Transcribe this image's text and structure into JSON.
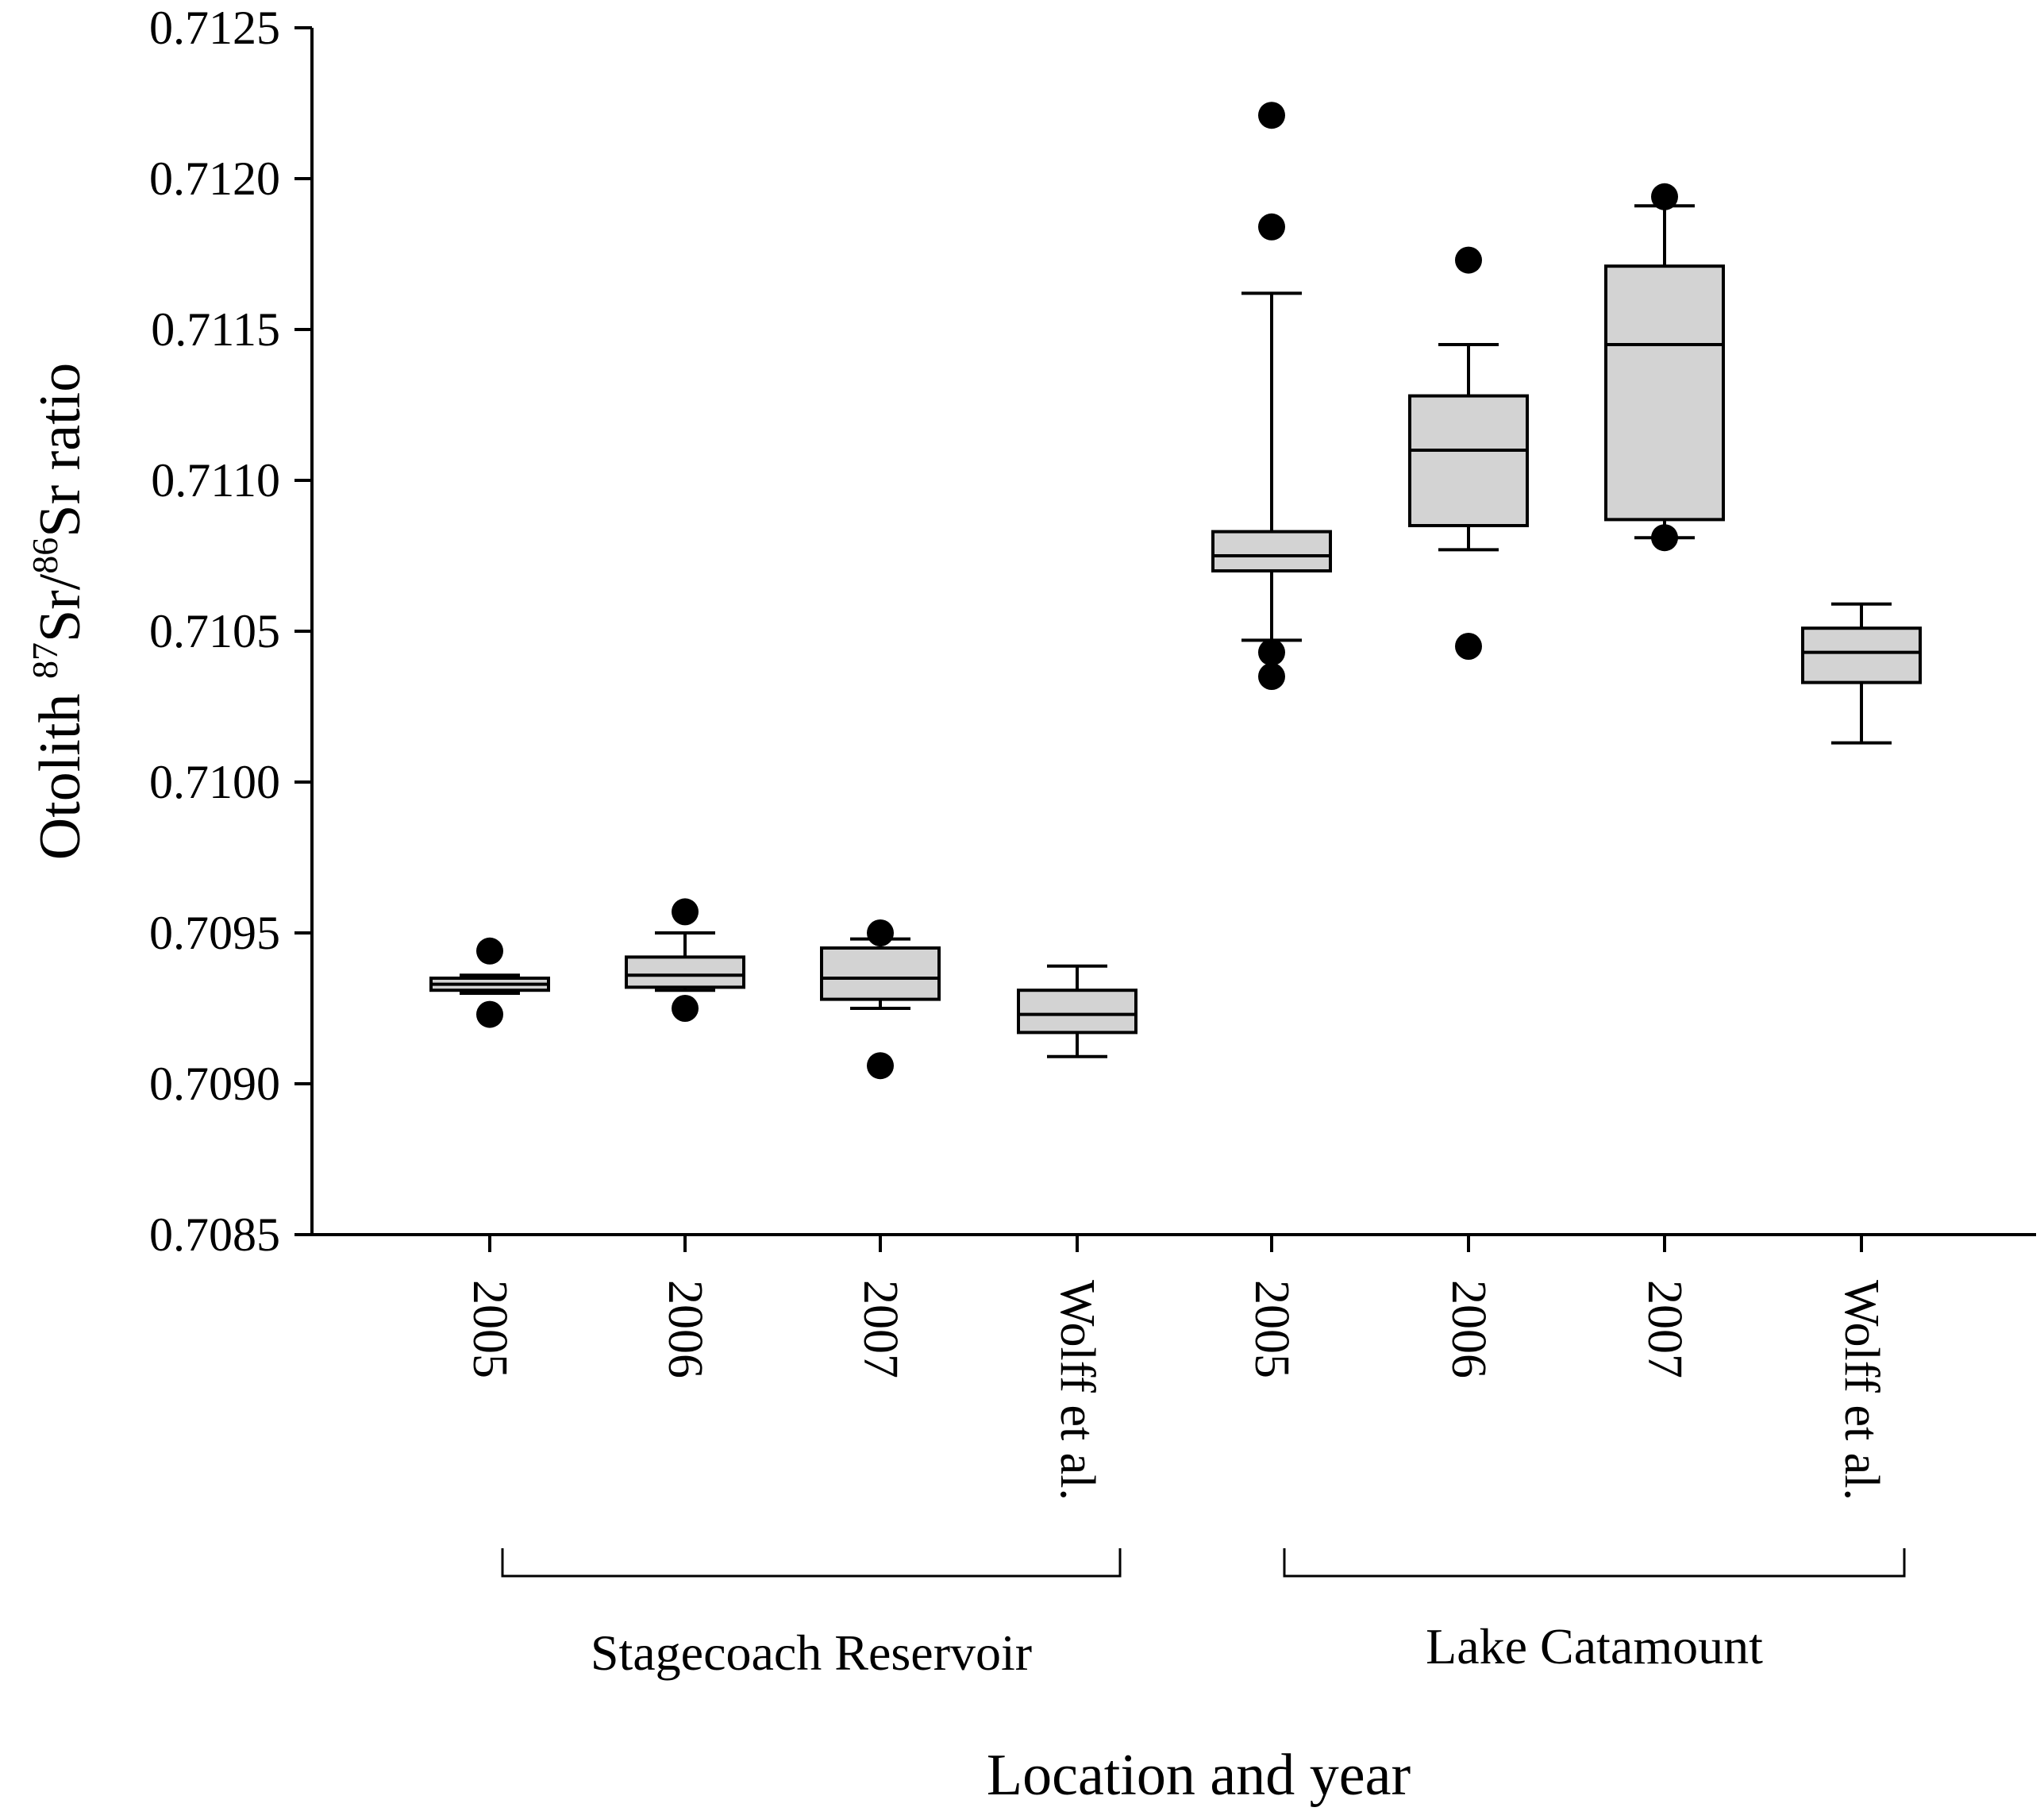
{
  "chart_data": {
    "type": "box",
    "title": "",
    "xlabel": "Location and year",
    "ylabel": {
      "prefix": "Otolith ",
      "sup1": "87",
      "mid": "Sr/",
      "sup2": "86",
      "suffix": "Sr ratio"
    },
    "ylim": [
      0.7085,
      0.7125
    ],
    "yticks": [
      "0.7085",
      "0.7090",
      "0.7095",
      "0.7100",
      "0.7105",
      "0.7110",
      "0.7115",
      "0.7120",
      "0.7125"
    ],
    "grid": false,
    "groups": [
      {
        "label": "Stagecoach Reservoir",
        "categories": [
          0,
          1,
          2,
          3
        ]
      },
      {
        "label": "Lake Catamount",
        "categories": [
          4,
          5,
          6,
          7
        ]
      }
    ],
    "categories": [
      "2005",
      "2006",
      "2007",
      "Wolff et al.",
      "2005",
      "2006",
      "2007",
      "Wolff et al."
    ],
    "boxes": [
      {
        "category": "2005",
        "group": "Stagecoach Reservoir",
        "whisker_low": 0.7093,
        "q1": 0.70931,
        "median": 0.70933,
        "q3": 0.70935,
        "whisker_high": 0.70936,
        "outliers": [
          0.70944,
          0.70923
        ]
      },
      {
        "category": "2006",
        "group": "Stagecoach Reservoir",
        "whisker_low": 0.70931,
        "q1": 0.70932,
        "median": 0.70936,
        "q3": 0.70942,
        "whisker_high": 0.7095,
        "outliers": [
          0.70957,
          0.70925
        ]
      },
      {
        "category": "2007",
        "group": "Stagecoach Reservoir",
        "whisker_low": 0.70925,
        "q1": 0.70928,
        "median": 0.70935,
        "q3": 0.70945,
        "whisker_high": 0.70948,
        "outliers": [
          0.7095,
          0.70906
        ]
      },
      {
        "category": "Wolff et al.",
        "group": "Stagecoach Reservoir",
        "whisker_low": 0.70909,
        "q1": 0.70917,
        "median": 0.70923,
        "q3": 0.70931,
        "whisker_high": 0.70939,
        "outliers": []
      },
      {
        "category": "2005",
        "group": "Lake Catamount",
        "whisker_low": 0.71047,
        "q1": 0.7107,
        "median": 0.71075,
        "q3": 0.71083,
        "whisker_high": 0.71162,
        "outliers": [
          0.71221,
          0.71184,
          0.71043,
          0.71035
        ]
      },
      {
        "category": "2006",
        "group": "Lake Catamount",
        "whisker_low": 0.71077,
        "q1": 0.71085,
        "median": 0.7111,
        "q3": 0.71128,
        "whisker_high": 0.71145,
        "outliers": [
          0.71173,
          0.71045
        ]
      },
      {
        "category": "2007",
        "group": "Lake Catamount",
        "whisker_low": 0.71081,
        "q1": 0.71087,
        "median": 0.71145,
        "q3": 0.71171,
        "whisker_high": 0.71191,
        "outliers": [
          0.71194,
          0.71081
        ]
      },
      {
        "category": "Wolff et al.",
        "group": "Lake Catamount",
        "whisker_low": 0.71013,
        "q1": 0.71033,
        "median": 0.71043,
        "q3": 0.71051,
        "whisker_high": 0.71059,
        "outliers": []
      }
    ],
    "colors": {
      "box_fill": "#d3d3d3",
      "stroke": "#000000",
      "outlier": "#000000"
    }
  }
}
